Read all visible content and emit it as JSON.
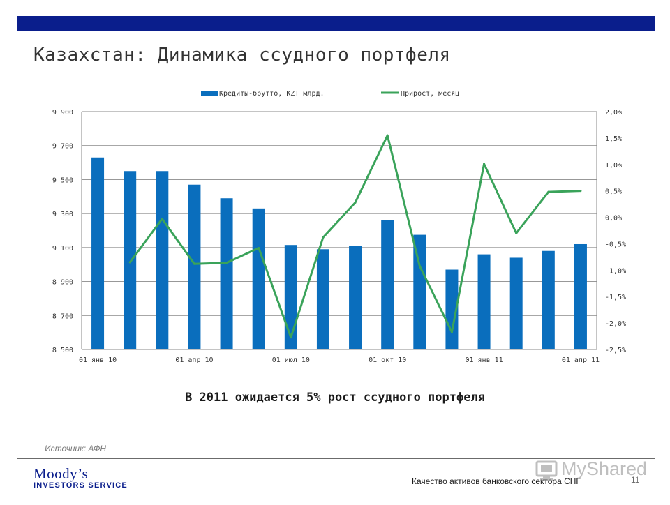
{
  "header": {
    "title": "Казахстан: Динамика ссудного портфеля"
  },
  "chart_data": {
    "type": "bar",
    "categories": [
      "01 янв 10",
      "",
      "",
      "01 апр 10",
      "",
      "",
      "01 июл 10",
      "",
      "",
      "01 окт 10",
      "",
      "",
      "01 янв 11",
      "",
      "",
      "01 апр 11"
    ],
    "x_tick_labels": [
      "01 янв 10",
      "01 апр 10",
      "01 июл 10",
      "01 окт 10",
      "01 янв 11",
      "01 апр 11"
    ],
    "series": [
      {
        "name": "Кредиты-брутто, KZT млрд.",
        "type": "bar",
        "axis": "left",
        "color": "#0a6ebd",
        "values": [
          9630,
          9550,
          9550,
          9470,
          9390,
          9330,
          9115,
          9090,
          9110,
          9260,
          9175,
          8970,
          9060,
          9040,
          9080,
          9120
        ]
      },
      {
        "name": "Прирост, месяц",
        "type": "line",
        "axis": "right",
        "color": "#3aa35a",
        "values": [
          null,
          -0.85,
          -0.03,
          -0.88,
          -0.86,
          -0.58,
          -2.27,
          -0.38,
          0.28,
          1.55,
          -0.92,
          -2.17,
          1.01,
          -0.3,
          0.48,
          0.5
        ]
      }
    ],
    "y_left": {
      "min": 8500,
      "max": 9900,
      "ticks": [
        8500,
        8700,
        8900,
        9100,
        9300,
        9500,
        9700,
        9900
      ],
      "tick_labels": [
        "8 500",
        "8 700",
        "8 900",
        "9 100",
        "9 300",
        "9 500",
        "9 700",
        "9 900"
      ]
    },
    "y_right": {
      "min": -2.5,
      "max": 2.0,
      "ticks": [
        -2.5,
        -2.0,
        -1.5,
        -1.0,
        -0.5,
        0.0,
        0.5,
        1.0,
        1.5,
        2.0
      ],
      "tick_labels": [
        "-2,5%",
        "-2,0%",
        "-1,5%",
        "-1,0%",
        "-0,5%",
        "0,0%",
        "0,5%",
        "1,0%",
        "1,5%",
        "2,0%"
      ]
    },
    "legend_position": "top",
    "grid": true
  },
  "subtitle": "В 2011 ожидается 5% рост ссудного портфеля",
  "source": "Источник: АФН",
  "footer": {
    "logo_line1": "Moody’s",
    "logo_line2": "INVESTORS SERVICE",
    "text": "Качество активов банковского сектора СНГ",
    "page": "11",
    "watermark": "MyShared"
  }
}
